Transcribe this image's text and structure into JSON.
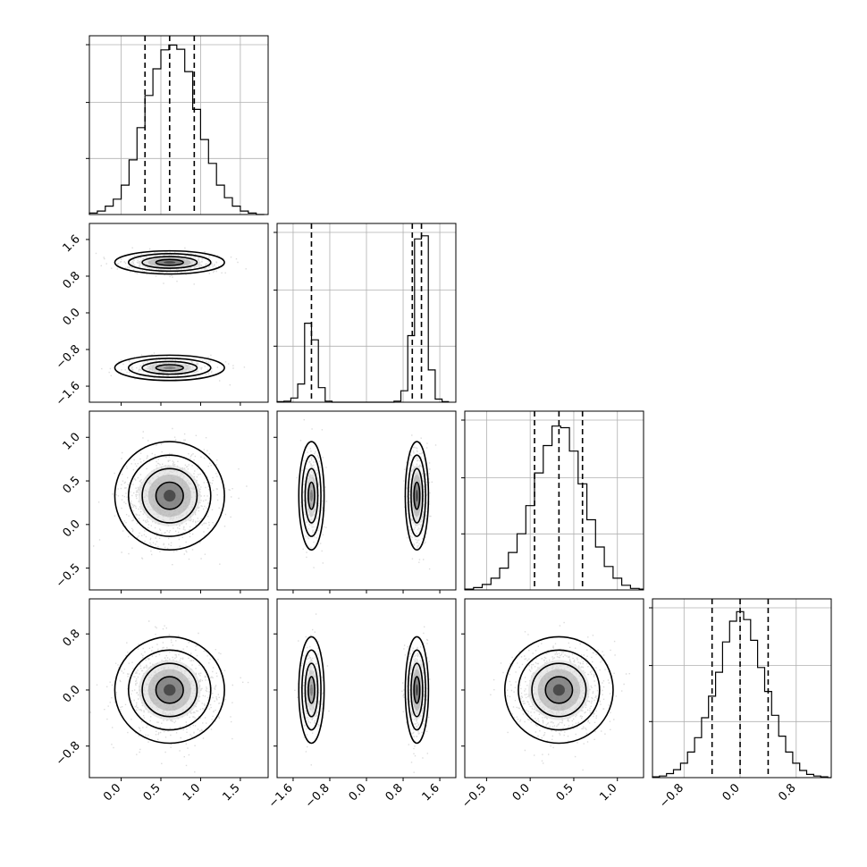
{
  "chart_data": {
    "type": "corner",
    "title": "",
    "n_params": 4,
    "parameters": [
      {
        "index": 0,
        "range": [
          -0.4,
          1.85
        ],
        "ticks": [
          0.0,
          0.5,
          1.0,
          1.5
        ],
        "tick_labels": [
          "0.0",
          "0.5",
          "1.0",
          "1.5"
        ],
        "quantiles": [
          0.3,
          0.61,
          0.92
        ],
        "histogram": {
          "bin_edges": [
            -0.4,
            -0.3,
            -0.2,
            -0.1,
            0.0,
            0.1,
            0.2,
            0.3,
            0.4,
            0.5,
            0.6,
            0.7,
            0.8,
            0.9,
            1.0,
            1.1,
            1.2,
            1.3,
            1.4,
            1.5,
            1.6,
            1.7,
            1.8
          ],
          "counts": [
            2,
            5,
            12,
            22,
            42,
            78,
            124,
            170,
            208,
            235,
            242,
            236,
            204,
            150,
            107,
            73,
            42,
            24,
            12,
            5,
            2,
            0
          ],
          "max": 245
        }
      },
      {
        "index": 1,
        "range": [
          -1.95,
          1.95
        ],
        "ticks": [
          -1.6,
          -0.8,
          0.0,
          0.8,
          1.6
        ],
        "tick_labels": [
          "−1.6",
          "−0.8",
          "0.0",
          "0.8",
          "1.6"
        ],
        "quantiles": [
          -1.2,
          1.0,
          1.2
        ],
        "histogram": {
          "bin_edges": [
            -1.95,
            -1.8,
            -1.65,
            -1.5,
            -1.35,
            -1.2,
            -1.05,
            -0.9,
            -0.75,
            -0.6,
            -0.45,
            -0.3,
            -0.15,
            0.0,
            0.15,
            0.3,
            0.45,
            0.6,
            0.75,
            0.9,
            1.05,
            1.2,
            1.35,
            1.5,
            1.65,
            1.8
          ],
          "counts": [
            1,
            2,
            8,
            35,
            152,
            120,
            28,
            2,
            0,
            0,
            0,
            0,
            0,
            0,
            0,
            0,
            0,
            2,
            22,
            128,
            314,
            320,
            62,
            6,
            1
          ],
          "max": 330
        },
        "modes": [
          {
            "mean": -1.2,
            "sd": 0.12
          },
          {
            "mean": 1.1,
            "sd": 0.11
          }
        ]
      },
      {
        "index": 2,
        "range": [
          -0.75,
          1.3
        ],
        "ticks": [
          -0.5,
          0.0,
          0.5,
          1.0
        ],
        "tick_labels": [
          "−0.5",
          "0.0",
          "0.5",
          "1.0"
        ],
        "quantiles": [
          0.05,
          0.33,
          0.6
        ],
        "histogram": {
          "bin_edges": [
            -0.75,
            -0.65,
            -0.55,
            -0.45,
            -0.35,
            -0.25,
            -0.15,
            -0.05,
            0.05,
            0.15,
            0.25,
            0.35,
            0.45,
            0.55,
            0.65,
            0.75,
            0.85,
            0.95,
            1.05,
            1.15,
            1.25,
            1.3
          ],
          "counts": [
            1,
            3,
            7,
            15,
            28,
            48,
            72,
            108,
            150,
            185,
            210,
            208,
            178,
            136,
            90,
            55,
            30,
            15,
            6,
            2,
            1
          ],
          "max": 220
        }
      },
      {
        "index": 3,
        "range": [
          -1.25,
          1.3
        ],
        "ticks": [
          -0.8,
          0.0,
          0.8
        ],
        "tick_labels": [
          "−0.8",
          "0.0",
          "0.8"
        ],
        "quantiles": [
          -0.4,
          0.0,
          0.4
        ],
        "histogram": {
          "bin_edges": [
            -1.25,
            -1.15,
            -1.05,
            -0.95,
            -0.85,
            -0.75,
            -0.65,
            -0.55,
            -0.45,
            -0.35,
            -0.25,
            -0.15,
            -0.05,
            0.05,
            0.15,
            0.25,
            0.35,
            0.45,
            0.55,
            0.65,
            0.75,
            0.85,
            0.95,
            1.05,
            1.15,
            1.25,
            1.3
          ],
          "counts": [
            1,
            2,
            5,
            10,
            18,
            32,
            50,
            75,
            102,
            132,
            170,
            196,
            208,
            198,
            172,
            138,
            108,
            78,
            52,
            32,
            18,
            9,
            4,
            2,
            1,
            0
          ],
          "max": 215
        }
      }
    ],
    "truths": [
      0.62,
      1.1,
      0.33,
      0.0
    ],
    "joint_pairs": [
      {
        "x": 0,
        "y": 1,
        "rho": 0.0
      },
      {
        "x": 0,
        "y": 2,
        "rho": 0.0
      },
      {
        "x": 0,
        "y": 3,
        "rho": 0.0
      },
      {
        "x": 1,
        "y": 2,
        "rho": 0.0
      },
      {
        "x": 1,
        "y": 3,
        "rho": 0.0
      },
      {
        "x": 2,
        "y": 3,
        "rho": 0.0
      }
    ],
    "marginals": [
      {
        "mean": 0.61,
        "sd": 0.3
      },
      {
        "mean": 0.0,
        "sd": 0.0
      },
      {
        "mean": 0.33,
        "sd": 0.27
      },
      {
        "mean": 0.0,
        "sd": 0.33
      }
    ],
    "contour_levels_sigma": [
      0.5,
      1.0,
      1.5,
      2.0
    ],
    "grid": true,
    "legend": "none"
  }
}
